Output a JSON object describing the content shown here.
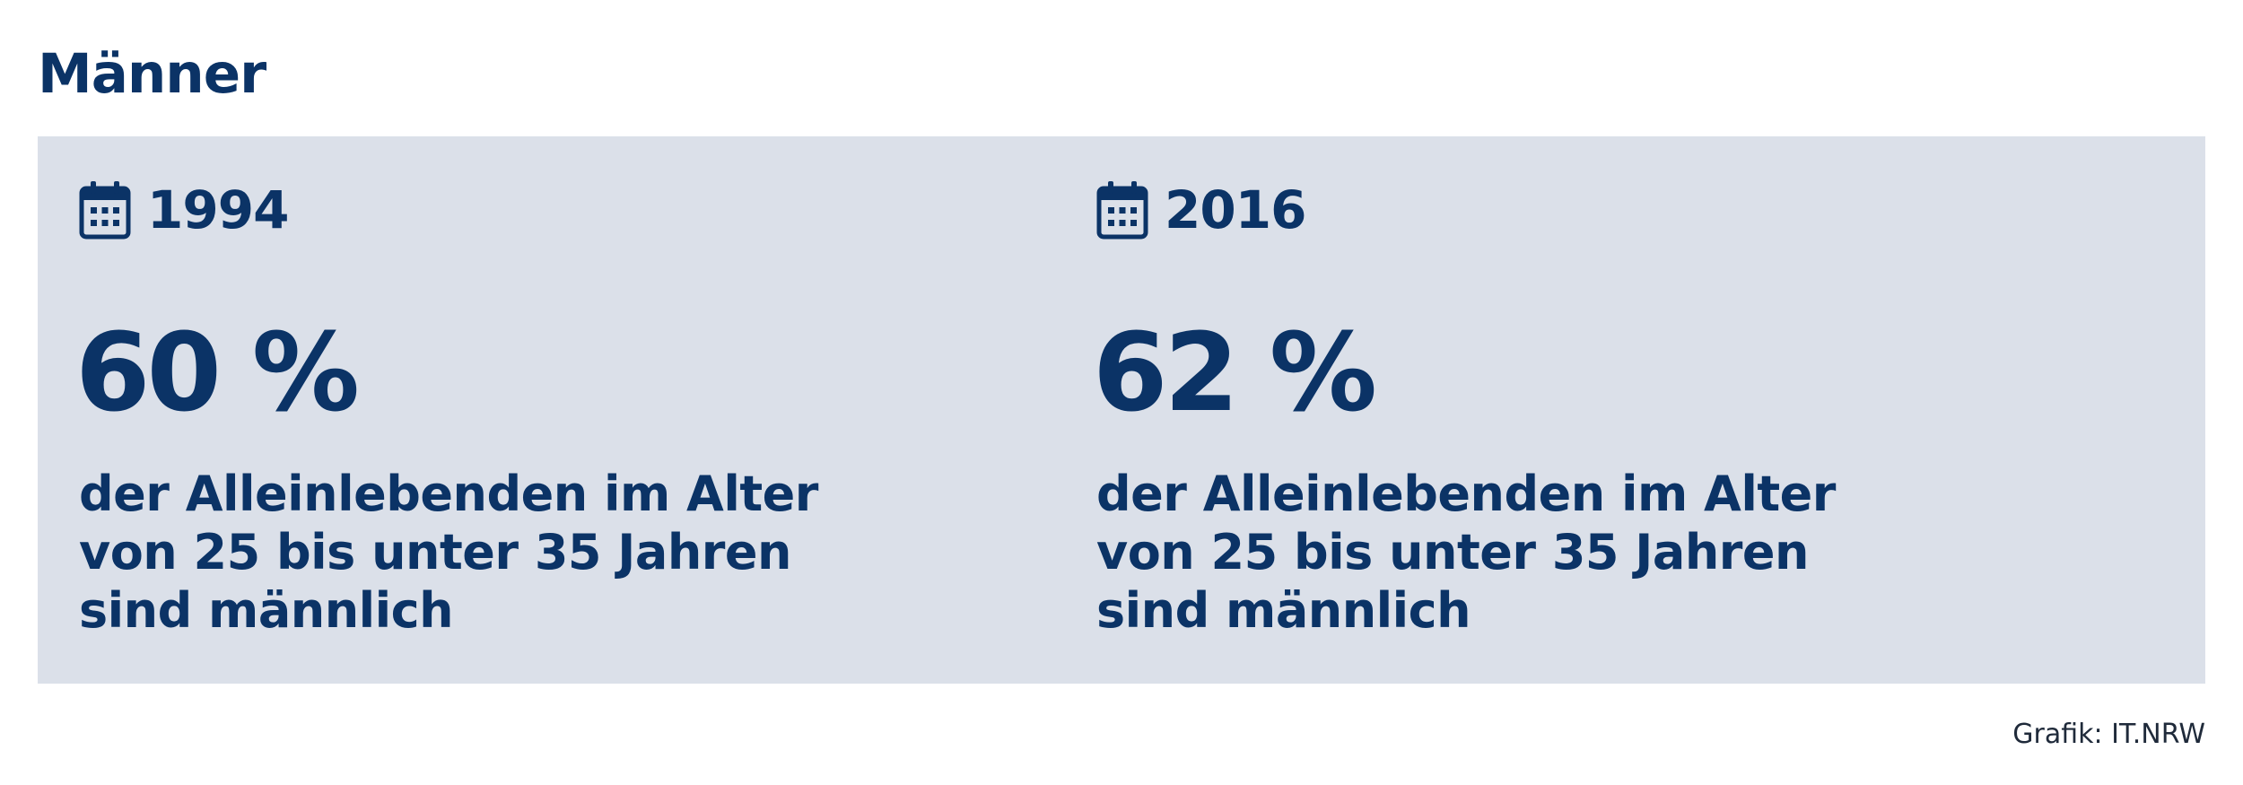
{
  "title": "Männer",
  "colors": {
    "primary": "#0b3366",
    "panel_background": "#dbe0e9",
    "page_background": "#ffffff",
    "credit_text": "#1f2a3a"
  },
  "icons": {
    "year_icon": "calendar-icon"
  },
  "cards": [
    {
      "year": "1994",
      "percent": "60 %",
      "description_lines": [
        "der Alleinlebenden im Alter",
        "von 25 bis unter 35 Jahren",
        "sind männlich"
      ]
    },
    {
      "year": "2016",
      "percent": "62 %",
      "description_lines": [
        "der Alleinlebenden im Alter",
        "von 25 bis unter 35 Jahren",
        "sind männlich"
      ]
    }
  ],
  "credit": "Grafik: IT.NRW"
}
